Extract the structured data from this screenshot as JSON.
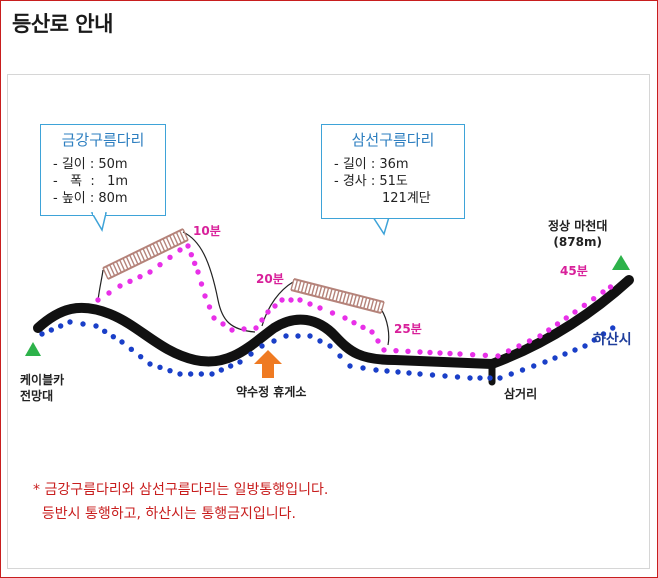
{
  "title": "등산로 안내",
  "bridges": [
    {
      "name": "금강구름다리",
      "lines": [
        "- 길이 : 50m",
        "-   폭  :   1m",
        "- 높이 : 80m"
      ]
    },
    {
      "name": "삼선구름다리",
      "lines": [
        "- 길이 : 36m",
        "- 경사 : 51도"
      ],
      "extra": "121계단"
    }
  ],
  "places": {
    "cable_car": "케이블카\n전망대",
    "rest_area": "약수정 휴게소",
    "junction": "삼거리",
    "summit": "정상 마천대\n(878m)"
  },
  "times": [
    "10분",
    "20분",
    "25분",
    "45분"
  ],
  "descent_label": "하산시",
  "notice": {
    "line1": "* 금강구름다리와 삼선구름다리는 일방통행입니다.",
    "line2": "  등반시 통행하고, 하산시는 통행금지입니다."
  },
  "colors": {
    "ascent_route": "#e830e8",
    "descent_route": "#1a3fc8",
    "trail": "#111111",
    "bridge": "#b5837a",
    "marker_green": "#2db24a",
    "marker_orange": "#ef7a22",
    "box_border": "#3ea3d8",
    "notice": "#c81e1e"
  },
  "icons": {
    "start_marker": "green-triangle",
    "summit_marker": "green-triangle",
    "rest_marker": "orange-up-arrow"
  }
}
